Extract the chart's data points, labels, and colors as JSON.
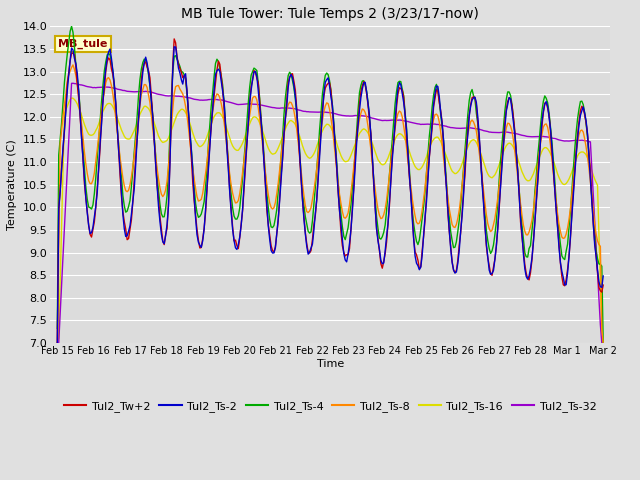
{
  "title": "MB Tule Tower: Tule Temps 2 (3/23/17-now)",
  "xlabel": "Time",
  "ylabel": "Temperature (C)",
  "ylim": [
    7.0,
    14.0
  ],
  "yticks": [
    7.0,
    7.5,
    8.0,
    8.5,
    9.0,
    9.5,
    10.0,
    10.5,
    11.0,
    11.5,
    12.0,
    12.5,
    13.0,
    13.5,
    14.0
  ],
  "bg_color": "#e0e0e0",
  "plot_bg_color": "#dcdcdc",
  "series_colors": {
    "Tul2_Tw+2": "#cc0000",
    "Tul2_Ts-2": "#0000cc",
    "Tul2_Ts-4": "#00aa00",
    "Tul2_Ts-8": "#ff8800",
    "Tul2_Ts-16": "#dddd00",
    "Tul2_Ts-32": "#9900cc"
  },
  "legend_label": "MB_tule",
  "xtick_labels": [
    "Feb 15",
    "Feb 16",
    "Feb 17",
    "Feb 18",
    "Feb 19",
    "Feb 20",
    "Feb 21",
    "Feb 22",
    "Feb 23",
    "Feb 24",
    "Feb 25",
    "Feb 26",
    "Feb 27",
    "Feb 28",
    "Mar 1",
    "Mar 2"
  ],
  "xtick_positions": [
    0,
    1,
    2,
    3,
    4,
    5,
    6,
    7,
    8,
    9,
    10,
    11,
    12,
    13,
    14,
    15
  ]
}
